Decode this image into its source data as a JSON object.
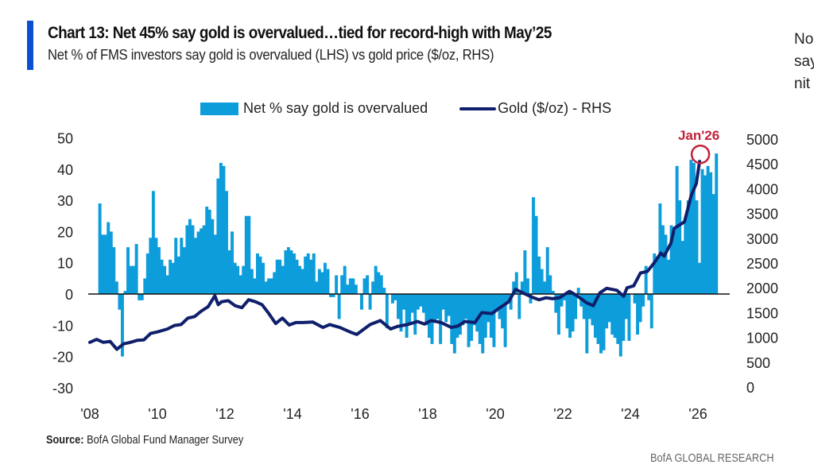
{
  "header": {
    "title": "Chart 13: Net 45% say gold is overvalued…tied for record-high with May’25",
    "subtitle": "Net % of FMS investors say gold is overvalued (LHS) vs gold price ($/oz, RHS)"
  },
  "side_text": [
    "No",
    "say",
    "nit"
  ],
  "footer": {
    "source_label": "Source:",
    "source_text": " BofA Global Fund Manager Survey",
    "brand": "BofA GLOBAL RESEARCH"
  },
  "colors": {
    "accent": "#0a4fcf",
    "bars": "#0d9ddb",
    "line": "#0f1f6b",
    "annotation": "#c0213a"
  },
  "chart_data": {
    "type": "bar+line",
    "title": "Chart 13: Net 45% say gold is overvalued…tied for record-high with May’25",
    "subtitle": "Net % of FMS investors say gold is overvalued (LHS) vs gold price ($/oz, RHS)",
    "legend": {
      "placement": "top-center",
      "entries": [
        "Net % say gold is overvalued",
        "Gold ($/oz) - RHS"
      ]
    },
    "x_tick_labels": [
      "'08",
      "'10",
      "'12",
      "'14",
      "'16",
      "'18",
      "'20",
      "'22",
      "'24",
      "'26"
    ],
    "x_ticks_year": [
      2008,
      2010,
      2012,
      2014,
      2016,
      2018,
      2020,
      2022,
      2024,
      2026
    ],
    "x_range": [
      2008.0,
      2026.7
    ],
    "y_left": {
      "label": "Net %",
      "range": [
        -30,
        50
      ],
      "ticks": [
        50,
        40,
        30,
        20,
        10,
        0,
        -10,
        -20,
        -30
      ]
    },
    "y_right": {
      "label": "$/oz",
      "range": [
        0,
        5000
      ],
      "ticks": [
        5000,
        4500,
        4000,
        3500,
        3000,
        2500,
        2000,
        1500,
        1000,
        500,
        0
      ],
      "zero_alignment_note": "LHS 0 aligned with RHS ~1850"
    },
    "annotation": {
      "text": "Jan'26",
      "marker": "circle",
      "x": 2026.05,
      "y_left": 45
    },
    "bar_series": {
      "name": "Net % say gold is overvalued",
      "start": 2008.25,
      "step_months": 1,
      "values": [
        29,
        19,
        19,
        23,
        20,
        15,
        4,
        -5,
        -20,
        1,
        15,
        9,
        9,
        16,
        -2,
        -2,
        5,
        13,
        18,
        33,
        18,
        15,
        11,
        9,
        6,
        11,
        10,
        18,
        12,
        18,
        15,
        22,
        24,
        22,
        18,
        20,
        21,
        22,
        28,
        27,
        24,
        19,
        37,
        42,
        41,
        33,
        14,
        20,
        10,
        9,
        6,
        9,
        25,
        25,
        8,
        5,
        13,
        12,
        10,
        4,
        5,
        5,
        7,
        11,
        11,
        9,
        14,
        15,
        14,
        13,
        11,
        9,
        8,
        12,
        13,
        11,
        13,
        4,
        8,
        7,
        10,
        8,
        -1,
        -1,
        6,
        -8,
        6,
        9,
        3,
        5,
        5,
        3,
        0,
        -5,
        5,
        6,
        -5,
        4,
        9,
        7,
        6,
        2,
        -11,
        0,
        -3,
        -2,
        -8,
        -12,
        -5,
        -14,
        -10,
        -6,
        -13,
        -5,
        -4,
        -6,
        -10,
        -14,
        -16,
        -9,
        -8,
        -16,
        -5,
        -9,
        -7,
        -16,
        -19,
        -14,
        -13,
        -10,
        -8,
        -17,
        -15,
        -10,
        -12,
        -16,
        -19,
        -14,
        -9,
        -14,
        -17,
        -5,
        -8,
        -11,
        -17,
        -3,
        -5,
        4,
        7,
        -8,
        4,
        14,
        5,
        -3,
        31,
        25,
        12,
        8,
        4,
        15,
        6,
        1,
        -6,
        -13,
        -4,
        -2,
        -11,
        -14,
        -12,
        -8,
        2,
        -4,
        -8,
        -19,
        -8,
        -10,
        -14,
        -16,
        -19,
        -18,
        -11,
        -9,
        -13,
        -14,
        -16,
        -20,
        -15,
        -8,
        -15,
        0,
        -3,
        -13,
        -9,
        -4,
        9,
        -2,
        -11,
        13,
        12,
        29,
        22,
        19,
        11,
        22,
        20,
        41,
        30,
        17,
        24,
        30,
        43,
        42,
        30,
        10,
        40,
        38,
        41,
        39,
        32,
        45
      ]
    },
    "line_series": {
      "name": "Gold ($/oz) - RHS",
      "points": [
        [
          2008.0,
          900
        ],
        [
          2008.2,
          960
        ],
        [
          2008.4,
          900
        ],
        [
          2008.6,
          920
        ],
        [
          2008.8,
          760
        ],
        [
          2009.0,
          870
        ],
        [
          2009.2,
          900
        ],
        [
          2009.4,
          940
        ],
        [
          2009.6,
          950
        ],
        [
          2009.8,
          1080
        ],
        [
          2010.0,
          1110
        ],
        [
          2010.3,
          1170
        ],
        [
          2010.5,
          1240
        ],
        [
          2010.7,
          1260
        ],
        [
          2010.9,
          1390
        ],
        [
          2011.1,
          1420
        ],
        [
          2011.3,
          1530
        ],
        [
          2011.5,
          1620
        ],
        [
          2011.7,
          1840
        ],
        [
          2011.8,
          1660
        ],
        [
          2011.9,
          1720
        ],
        [
          2012.1,
          1740
        ],
        [
          2012.3,
          1640
        ],
        [
          2012.5,
          1600
        ],
        [
          2012.7,
          1760
        ],
        [
          2012.9,
          1720
        ],
        [
          2013.1,
          1660
        ],
        [
          2013.3,
          1480
        ],
        [
          2013.5,
          1280
        ],
        [
          2013.7,
          1390
        ],
        [
          2013.9,
          1250
        ],
        [
          2014.1,
          1300
        ],
        [
          2014.3,
          1300
        ],
        [
          2014.6,
          1310
        ],
        [
          2014.9,
          1200
        ],
        [
          2015.1,
          1260
        ],
        [
          2015.4,
          1200
        ],
        [
          2015.7,
          1110
        ],
        [
          2015.9,
          1060
        ],
        [
          2016.1,
          1160
        ],
        [
          2016.3,
          1260
        ],
        [
          2016.6,
          1340
        ],
        [
          2016.9,
          1170
        ],
        [
          2017.1,
          1220
        ],
        [
          2017.4,
          1260
        ],
        [
          2017.7,
          1320
        ],
        [
          2017.9,
          1270
        ],
        [
          2018.1,
          1340
        ],
        [
          2018.4,
          1300
        ],
        [
          2018.7,
          1200
        ],
        [
          2018.9,
          1230
        ],
        [
          2019.1,
          1320
        ],
        [
          2019.4,
          1300
        ],
        [
          2019.6,
          1500
        ],
        [
          2019.9,
          1480
        ],
        [
          2020.1,
          1580
        ],
        [
          2020.4,
          1720
        ],
        [
          2020.6,
          1970
        ],
        [
          2020.9,
          1870
        ],
        [
          2021.1,
          1810
        ],
        [
          2021.3,
          1760
        ],
        [
          2021.5,
          1800
        ],
        [
          2021.7,
          1780
        ],
        [
          2021.9,
          1800
        ],
        [
          2022.2,
          1930
        ],
        [
          2022.4,
          1850
        ],
        [
          2022.7,
          1700
        ],
        [
          2022.9,
          1640
        ],
        [
          2023.1,
          1900
        ],
        [
          2023.3,
          1990
        ],
        [
          2023.6,
          1950
        ],
        [
          2023.8,
          1830
        ],
        [
          2023.9,
          2000
        ],
        [
          2024.1,
          2040
        ],
        [
          2024.3,
          2300
        ],
        [
          2024.5,
          2330
        ],
        [
          2024.7,
          2500
        ],
        [
          2024.9,
          2700
        ],
        [
          2025.0,
          2640
        ],
        [
          2025.2,
          2900
        ],
        [
          2025.3,
          3200
        ],
        [
          2025.6,
          3330
        ],
        [
          2025.8,
          3860
        ],
        [
          2025.95,
          4100
        ],
        [
          2026.05,
          4550
        ]
      ]
    }
  }
}
